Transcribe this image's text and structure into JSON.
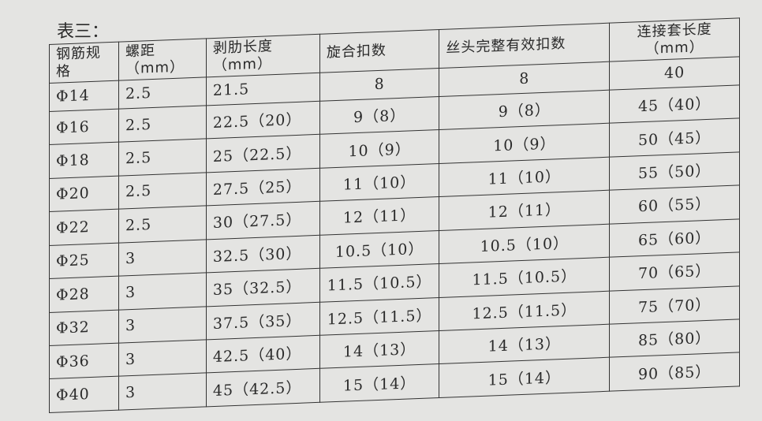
{
  "caption": "表三：",
  "headers": [
    "钢筋规格",
    "螺距（mm）",
    "剥肋长度（mm）",
    "旋合扣数",
    "丝头完整有效扣数",
    "连接套长度（mm）"
  ],
  "rows": [
    [
      "Φ14",
      "2.5",
      "21.5",
      "8",
      "8",
      "40"
    ],
    [
      "Φ16",
      "2.5",
      "22.5（20）",
      "9（8）",
      "9（8）",
      "45（40）"
    ],
    [
      "Φ18",
      "2.5",
      "25（22.5）",
      "10（9）",
      "10（9）",
      "50（45）"
    ],
    [
      "Φ20",
      "2.5",
      "27.5（25）",
      "11（10）",
      "11（10）",
      "55（50）"
    ],
    [
      "Φ22",
      "2.5",
      "30（27.5）",
      "12（11）",
      "12（11）",
      "60（55）"
    ],
    [
      "Φ25",
      "3",
      "32.5（30）",
      "10.5（10）",
      "10.5（10）",
      "65（60）"
    ],
    [
      "Φ28",
      "3",
      "35（32.5）",
      "11.5（10.5）",
      "11.5（10.5）",
      "70（65）"
    ],
    [
      "Φ32",
      "3",
      "37.5（35）",
      "12.5（11.5）",
      "12.5（11.5）",
      "75（70）"
    ],
    [
      "Φ36",
      "3",
      "42.5（40）",
      "14（13）",
      "14（13）",
      "85（80）"
    ],
    [
      "Φ40",
      "3",
      "45（42.5）",
      "15（14）",
      "15（14）",
      "90（85）"
    ]
  ]
}
